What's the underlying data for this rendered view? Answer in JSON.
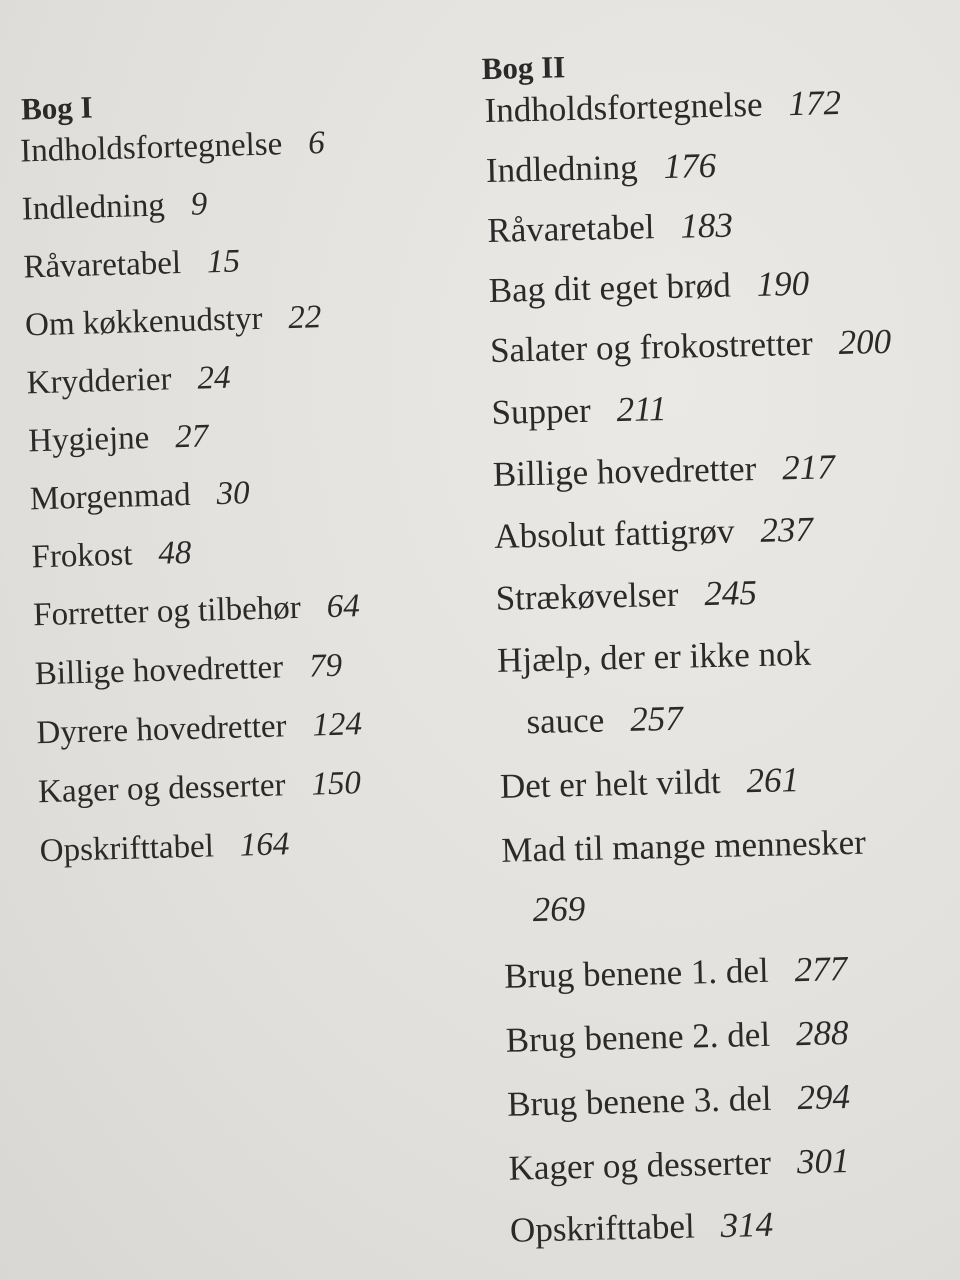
{
  "book1": {
    "heading": "Bog I",
    "entries": [
      {
        "title": "Indholdsfortegnelse",
        "page": "6"
      },
      {
        "title": "Indledning",
        "page": "9"
      },
      {
        "title": "Råvaretabel",
        "page": "15"
      },
      {
        "title": "Om køkkenudstyr",
        "page": "22"
      },
      {
        "title": "Krydderier",
        "page": "24"
      },
      {
        "title": "Hygiejne",
        "page": "27"
      },
      {
        "title": "Morgenmad",
        "page": "30"
      },
      {
        "title": "Frokost",
        "page": "48"
      },
      {
        "title": "Forretter og tilbehør",
        "page": "64"
      },
      {
        "title": "Billige hovedretter",
        "page": "79"
      },
      {
        "title": "Dyrere hovedretter",
        "page": "124"
      },
      {
        "title": "Kager og desserter",
        "page": "150"
      },
      {
        "title": "Opskrifttabel",
        "page": "164"
      }
    ]
  },
  "book2": {
    "heading": "Bog II",
    "entries": [
      {
        "title": "Indholdsfortegnelse",
        "page": "172"
      },
      {
        "title": "Indledning",
        "page": "176"
      },
      {
        "title": "Råvaretabel",
        "page": "183"
      },
      {
        "title": "Bag dit eget brød",
        "page": "190"
      },
      {
        "title": "Salater og frokostretter",
        "page": "200"
      },
      {
        "title": "Supper",
        "page": "211"
      },
      {
        "title": "Billige hovedretter",
        "page": "217"
      },
      {
        "title": "Absolut fattigrøv",
        "page": "237"
      },
      {
        "title": "Strækøvelser",
        "page": "245"
      },
      {
        "title": "Hjælp, der er ikke nok",
        "title_cont": "sauce",
        "page": "257"
      },
      {
        "title": "Det er helt vildt",
        "page": "261"
      },
      {
        "title": "Mad til mange mennesker",
        "page": "269"
      },
      {
        "title": "Brug benene 1. del",
        "page": "277"
      },
      {
        "title": "Brug benene 2. del",
        "page": "288"
      },
      {
        "title": "Brug benene 3. del",
        "page": "294"
      },
      {
        "title": "Kager og desserter",
        "page": "301"
      },
      {
        "title": "Opskrifttabel",
        "page": "314"
      }
    ]
  }
}
